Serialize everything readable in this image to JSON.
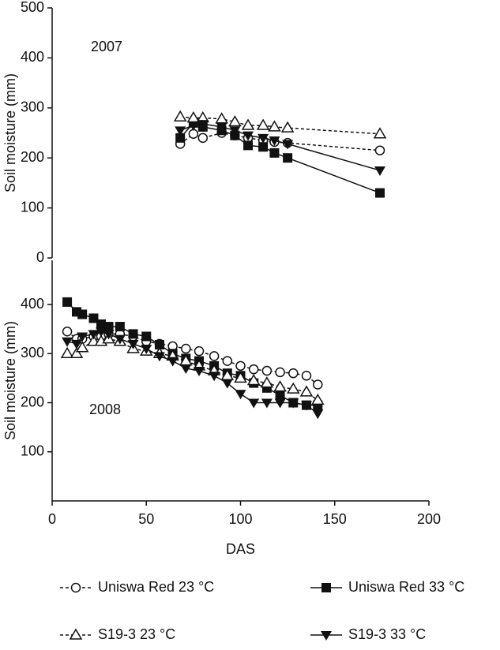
{
  "chart_data": [
    {
      "type": "line",
      "annotation": "2007",
      "ylabel": "Soil moisture (mm)",
      "x": [
        68,
        75,
        80,
        90,
        97,
        104,
        112,
        118,
        125,
        174
      ],
      "xlim": [
        0,
        200
      ],
      "ylim": [
        0,
        500
      ],
      "yticks": [
        0,
        100,
        200,
        300,
        400,
        500
      ],
      "series": [
        {
          "name": "Uniswa Red 23 °C",
          "color": "#111111",
          "marker": "circle",
          "dashed": true,
          "values": [
            228,
            248,
            240,
            250,
            245,
            240,
            235,
            232,
            230,
            215
          ]
        },
        {
          "name": "Uniswa Red 33 °C",
          "color": "#111111",
          "marker": "square",
          "dashed": false,
          "values": [
            240,
            270,
            262,
            255,
            245,
            225,
            222,
            210,
            200,
            130
          ]
        },
        {
          "name": "S19-3 23 °C",
          "color": "#111111",
          "marker": "triangle-up",
          "dashed": true,
          "values": [
            282,
            280,
            280,
            278,
            272,
            265,
            265,
            262,
            260,
            248
          ]
        },
        {
          "name": "S19-3 33 °C",
          "color": "#111111",
          "marker": "triangle-down",
          "dashed": false,
          "values": [
            255,
            265,
            268,
            262,
            255,
            245,
            240,
            235,
            228,
            175
          ]
        }
      ]
    },
    {
      "type": "line",
      "annotation": "2008",
      "ylabel": "Soil moisture (mm)",
      "xlabel": "DAS",
      "x": [
        8,
        13,
        16,
        22,
        26,
        30,
        36,
        43,
        50,
        57,
        64,
        71,
        78,
        86,
        93,
        100,
        107,
        114,
        121,
        128,
        135,
        141
      ],
      "xlim": [
        0,
        200
      ],
      "xticks": [
        0,
        50,
        100,
        150,
        200
      ],
      "ylim": [
        0,
        490
      ],
      "yticks": [
        100,
        200,
        300,
        400
      ],
      "series": [
        {
          "color": "#111111",
          "marker": "circle",
          "dashed": true,
          "values": [
            345,
            330,
            330,
            335,
            335,
            340,
            340,
            335,
            325,
            320,
            315,
            310,
            305,
            295,
            285,
            275,
            268,
            265,
            262,
            260,
            255,
            237
          ]
        },
        {
          "color": "#111111",
          "marker": "square",
          "dashed": false,
          "values": [
            405,
            385,
            380,
            372,
            360,
            355,
            355,
            340,
            335,
            318,
            300,
            290,
            285,
            275,
            260,
            255,
            240,
            230,
            215,
            200,
            195,
            195
          ]
        },
        {
          "color": "#111111",
          "marker": "triangle-up",
          "dashed": true,
          "values": [
            300,
            300,
            312,
            325,
            325,
            330,
            325,
            310,
            305,
            300,
            295,
            285,
            275,
            265,
            255,
            250,
            245,
            240,
            232,
            228,
            222,
            205
          ]
        },
        {
          "color": "#111111",
          "marker": "triangle-down",
          "dashed": false,
          "values": [
            325,
            320,
            335,
            340,
            345,
            340,
            330,
            320,
            310,
            295,
            285,
            270,
            265,
            255,
            240,
            218,
            200,
            200,
            200,
            200,
            195,
            178
          ]
        }
      ]
    }
  ]
}
